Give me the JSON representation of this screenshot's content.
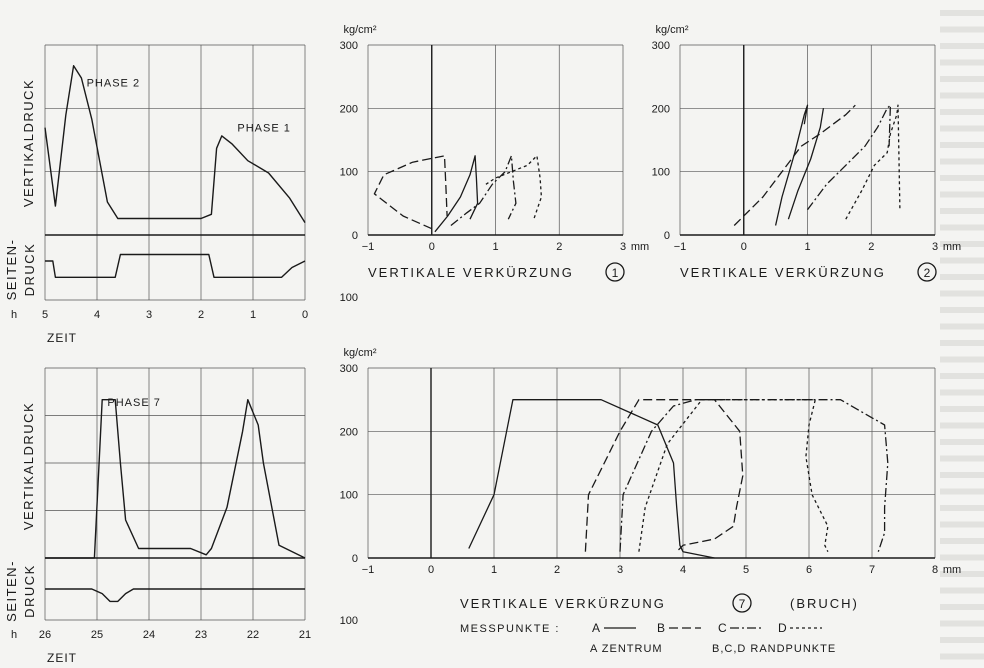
{
  "chart_data": [
    {
      "id": "phase12-time",
      "type": "line",
      "ylabel_top": "VERTIKALDRUCK",
      "ylabel_bottom": "SEITEN-\nDRUCK",
      "xlabel": "ZEIT",
      "x_unit": "h",
      "xlim": [
        5,
        0
      ],
      "xticks": [
        5,
        4,
        3,
        2,
        1,
        0
      ],
      "grid": true,
      "annotations": [
        {
          "text": "PHASE 2",
          "x": 4.2,
          "y": 180
        },
        {
          "text": "PHASE 1",
          "x": 1.3,
          "y": 125
        }
      ],
      "series": [
        {
          "role": "vertical",
          "x": [
            5,
            4.8,
            4.6,
            4.45,
            4.3,
            4.1,
            3.95,
            3.8,
            3.6,
            2.0,
            1.8,
            1.7,
            1.6,
            1.4,
            1.1,
            0.7,
            0.3,
            0
          ],
          "y": [
            130,
            35,
            145,
            205,
            190,
            140,
            90,
            40,
            20,
            20,
            25,
            105,
            120,
            110,
            90,
            75,
            45,
            15
          ]
        },
        {
          "role": "lateral",
          "x": [
            5,
            4.85,
            4.8,
            3.65,
            3.55,
            1.85,
            1.75,
            0.45,
            0.25,
            0
          ],
          "y": [
            0.2,
            0.2,
            -0.3,
            -0.3,
            0.4,
            0.4,
            -0.3,
            -0.3,
            0.0,
            0.2
          ]
        }
      ]
    },
    {
      "id": "strain-1",
      "type": "line",
      "y_unit": "kg/cm²",
      "x_unit": "mm",
      "xlabel": "VERTIKALE  VERKÜRZUNG",
      "marker": "1",
      "xlim": [
        -1,
        3
      ],
      "ylim": [
        0,
        300
      ],
      "xticks": [
        -1,
        0,
        1,
        2,
        3
      ],
      "yticks": [
        0,
        100,
        200,
        300
      ],
      "extra_ytick": 100,
      "grid": true,
      "series": [
        {
          "style": "A",
          "x": [
            0.05,
            0.25,
            0.45,
            0.6,
            0.68,
            0.7,
            0.72,
            0.6
          ],
          "y": [
            5,
            30,
            60,
            95,
            125,
            90,
            50,
            25
          ]
        },
        {
          "style": "B",
          "x": [
            0,
            -0.45,
            -0.9,
            -0.75,
            -0.3,
            0.2,
            0.22,
            0.24
          ],
          "y": [
            10,
            30,
            65,
            95,
            115,
            125,
            80,
            30
          ]
        },
        {
          "style": "C",
          "x": [
            0.3,
            0.55,
            0.75,
            0.95,
            1.15,
            1.25,
            1.28,
            1.32,
            1.2
          ],
          "y": [
            15,
            35,
            50,
            80,
            100,
            125,
            85,
            50,
            25
          ]
        },
        {
          "style": "D",
          "x": [
            0.85,
            1.0,
            1.25,
            1.5,
            1.65,
            1.7,
            1.72,
            1.6
          ],
          "y": [
            80,
            90,
            100,
            110,
            125,
            90,
            60,
            25
          ]
        }
      ]
    },
    {
      "id": "strain-2",
      "type": "line",
      "y_unit": "kg/cm²",
      "x_unit": "mm",
      "xlabel": "VERTIKALE  VERKÜRZUNG",
      "marker": "2",
      "xlim": [
        -1,
        3
      ],
      "ylim": [
        0,
        300
      ],
      "xticks": [
        -1,
        0,
        1,
        2,
        3
      ],
      "yticks": [
        0,
        100,
        200,
        300
      ],
      "grid": true,
      "series": [
        {
          "style": "A",
          "x": [
            0.5,
            0.6,
            0.8,
            0.95,
            1.0,
            0.95
          ],
          "y": [
            15,
            60,
            130,
            190,
            205,
            175
          ]
        },
        {
          "style": "A",
          "x": [
            0.7,
            0.85,
            1.05,
            1.2,
            1.25
          ],
          "y": [
            25,
            70,
            120,
            170,
            200
          ]
        },
        {
          "style": "B",
          "x": [
            -0.15,
            0.3,
            0.6,
            0.9,
            1.2,
            1.6,
            1.75
          ],
          "y": [
            15,
            60,
            100,
            140,
            160,
            190,
            205
          ]
        },
        {
          "style": "C",
          "x": [
            1.0,
            1.3,
            1.6,
            1.9,
            2.1,
            2.25,
            2.3,
            2.28
          ],
          "y": [
            40,
            80,
            110,
            140,
            170,
            200,
            205,
            140
          ]
        },
        {
          "style": "D",
          "x": [
            1.6,
            1.85,
            2.05,
            2.25,
            2.3,
            2.4,
            2.42,
            2.45
          ],
          "y": [
            25,
            70,
            110,
            130,
            160,
            190,
            205,
            40
          ]
        }
      ]
    },
    {
      "id": "phase7-time",
      "type": "line",
      "ylabel_top": "VERTIKALDRUCK",
      "ylabel_bottom": "SEITEN-\nDRUCK",
      "xlabel": "ZEIT",
      "x_unit": "h",
      "xlim": [
        26,
        21
      ],
      "xticks": [
        26,
        25,
        24,
        23,
        22,
        21
      ],
      "grid": true,
      "annotations": [
        {
          "text": "PHASE 7",
          "x": 24.8,
          "y": 240
        }
      ],
      "series": [
        {
          "role": "vertical",
          "x": [
            26,
            25.05,
            24.9,
            24.8,
            24.65,
            24.55,
            24.45,
            24.2,
            23.4,
            23.2,
            22.9,
            22.8,
            22.5,
            22.2,
            22.1,
            21.9,
            21.8,
            21.5,
            21.0
          ],
          "y": [
            0,
            0,
            250,
            250,
            250,
            150,
            60,
            15,
            15,
            15,
            5,
            15,
            80,
            200,
            250,
            210,
            150,
            20,
            0
          ]
        },
        {
          "role": "lateral",
          "x": [
            26,
            25.1,
            24.9,
            24.75,
            24.6,
            24.45,
            24.3,
            21.3,
            21.0
          ],
          "y": [
            0,
            0,
            -0.15,
            -0.4,
            -0.4,
            -0.15,
            0,
            0,
            0
          ]
        }
      ]
    },
    {
      "id": "strain-7",
      "type": "line",
      "y_unit": "kg/cm²",
      "x_unit": "mm",
      "xlabel": "VERTIKALE  VERKÜRZUNG",
      "marker": "7",
      "suffix": "(BRUCH)",
      "xlim": [
        -1,
        8
      ],
      "ylim": [
        0,
        300
      ],
      "xticks": [
        -1,
        0,
        1,
        2,
        3,
        4,
        5,
        6,
        7,
        8
      ],
      "yticks": [
        0,
        100,
        200,
        300
      ],
      "extra_ytick": 100,
      "grid": true,
      "series": [
        {
          "style": "A",
          "x": [
            0.6,
            1.0,
            1.3,
            2.7,
            3.6,
            3.85,
            3.9,
            3.95,
            4.0,
            4.5
          ],
          "y": [
            15,
            100,
            250,
            250,
            210,
            150,
            80,
            20,
            10,
            0
          ]
        },
        {
          "style": "B",
          "x": [
            2.45,
            2.5,
            2.75,
            3.0,
            3.3,
            4.5,
            4.9,
            4.95,
            4.85,
            4.8,
            4.5,
            4.0,
            3.9
          ],
          "y": [
            10,
            100,
            150,
            200,
            250,
            250,
            200,
            130,
            80,
            50,
            30,
            20,
            10
          ]
        },
        {
          "style": "C",
          "x": [
            3.0,
            3.05,
            3.5,
            3.85,
            4.2,
            6.5,
            7.2,
            7.25,
            7.2,
            7.2,
            7.1
          ],
          "y": [
            10,
            100,
            200,
            240,
            250,
            250,
            210,
            150,
            80,
            40,
            10
          ]
        },
        {
          "style": "D",
          "x": [
            3.3,
            3.4,
            3.75,
            4.3,
            6.1,
            6.0,
            5.95,
            6.05,
            6.3,
            6.25,
            6.3
          ],
          "y": [
            10,
            80,
            180,
            250,
            250,
            210,
            160,
            100,
            50,
            20,
            10
          ]
        }
      ]
    }
  ],
  "legend": {
    "title": "MESSPUNKTE :",
    "entries": [
      {
        "label": "A",
        "style": "A"
      },
      {
        "label": "B",
        "style": "B"
      },
      {
        "label": "C",
        "style": "C"
      },
      {
        "label": "D",
        "style": "D"
      }
    ],
    "note_a": "A  ZENTRUM",
    "note_bcd": "B,C,D  RANDPUNKTE"
  },
  "colors": {
    "ink": "#1a1a1a",
    "paper": "#f4f4f2",
    "grid": "#555555"
  }
}
